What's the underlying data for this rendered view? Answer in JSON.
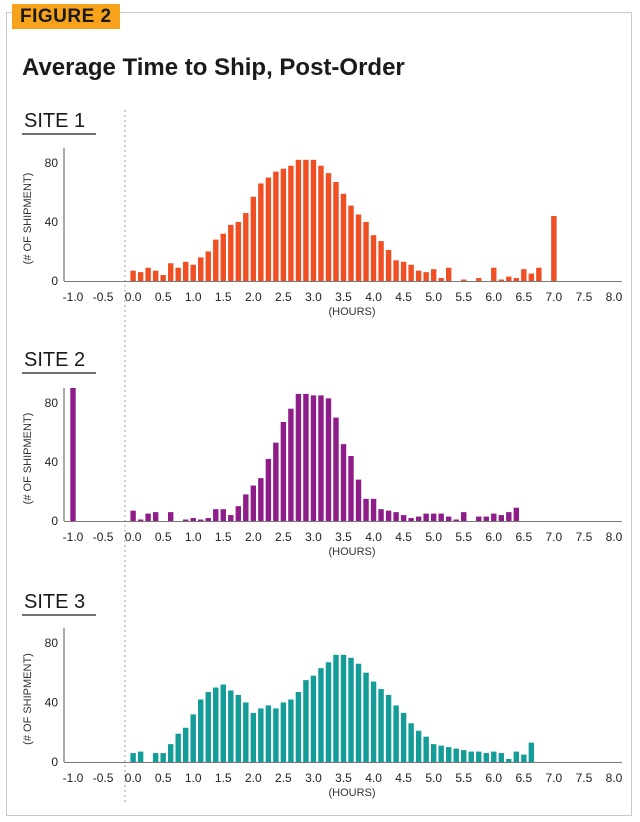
{
  "figure_label": "FIGURE 2",
  "title": "Average Time to Ship, Post-Order",
  "chart_data": [
    {
      "type": "bar",
      "title": "SITE 1",
      "xlabel": "(HOURS)",
      "ylabel": "(# OF SHIPMENT)",
      "color": "#f04e23",
      "xlim": [
        -1.0,
        8.0
      ],
      "ylim": [
        0,
        90
      ],
      "xticks": [
        "-1.0",
        "-0.5",
        "0.0",
        "0.5",
        "1.0",
        "1.5",
        "2.0",
        "2.5",
        "3.0",
        "3.5",
        "4.0",
        "4.5",
        "5.0",
        "5.5",
        "6.0",
        "6.5",
        "7.0",
        "7.5",
        "8.0"
      ],
      "yticks": [
        "0",
        "40",
        "80"
      ],
      "bin_width": 0.125,
      "x": [
        0.0,
        0.125,
        0.25,
        0.375,
        0.5,
        0.625,
        0.75,
        0.875,
        1.0,
        1.125,
        1.25,
        1.375,
        1.5,
        1.625,
        1.75,
        1.875,
        2.0,
        2.125,
        2.25,
        2.375,
        2.5,
        2.625,
        2.75,
        2.875,
        3.0,
        3.125,
        3.25,
        3.375,
        3.5,
        3.625,
        3.75,
        3.875,
        4.0,
        4.125,
        4.25,
        4.375,
        4.5,
        4.625,
        4.75,
        4.875,
        5.0,
        5.125,
        5.25,
        5.375,
        5.5,
        5.625,
        5.75,
        5.875,
        6.0,
        6.125,
        6.25,
        6.375,
        6.5,
        6.625,
        6.75,
        6.875,
        7.0,
        7.125,
        7.25,
        7.375,
        7.5,
        7.625,
        7.75,
        7.875,
        8.0
      ],
      "values": [
        7,
        6,
        9,
        7,
        4,
        12,
        9,
        13,
        11,
        16,
        20,
        28,
        32,
        38,
        40,
        46,
        57,
        66,
        70,
        74,
        76,
        78,
        82,
        82,
        82,
        78,
        73,
        67,
        59,
        51,
        45,
        40,
        31,
        27,
        21,
        14,
        13,
        11,
        7,
        6,
        8,
        2,
        9,
        0,
        1,
        0,
        2,
        0,
        9,
        1,
        3,
        2,
        8,
        5,
        9,
        0,
        44,
        0,
        0,
        0,
        0,
        0,
        0,
        0,
        0
      ]
    },
    {
      "type": "bar",
      "title": "SITE 2",
      "xlabel": "(HOURS)",
      "ylabel": "(# OF SHIPMENT)",
      "color": "#8e1d8a",
      "xlim": [
        -1.0,
        8.0
      ],
      "ylim": [
        0,
        90
      ],
      "xticks": [
        "-1.0",
        "-0.5",
        "0.0",
        "0.5",
        "1.0",
        "1.5",
        "2.0",
        "2.5",
        "3.0",
        "3.5",
        "4.0",
        "4.5",
        "5.0",
        "5.5",
        "6.0",
        "6.5",
        "7.0",
        "7.5",
        "8.0"
      ],
      "yticks": [
        "0",
        "40",
        "80"
      ],
      "bin_width": 0.125,
      "x": [
        -1.0,
        0.0,
        0.125,
        0.25,
        0.375,
        0.5,
        0.625,
        0.75,
        0.875,
        1.0,
        1.125,
        1.25,
        1.375,
        1.5,
        1.625,
        1.75,
        1.875,
        2.0,
        2.125,
        2.25,
        2.375,
        2.5,
        2.625,
        2.75,
        2.875,
        3.0,
        3.125,
        3.25,
        3.375,
        3.5,
        3.625,
        3.75,
        3.875,
        4.0,
        4.125,
        4.25,
        4.375,
        4.5,
        4.625,
        4.75,
        4.875,
        5.0,
        5.125,
        5.25,
        5.375,
        5.5,
        5.625,
        5.75,
        5.875,
        6.0,
        6.125,
        6.25,
        6.375,
        6.5,
        6.625,
        6.75,
        6.875,
        7.0,
        7.125,
        7.25,
        7.375,
        7.5,
        7.625,
        7.75,
        7.875,
        8.0
      ],
      "values": [
        90,
        7,
        1,
        5,
        6,
        0,
        6,
        0,
        1,
        2,
        1,
        2,
        8,
        8,
        4,
        10,
        18,
        24,
        29,
        42,
        53,
        67,
        76,
        86,
        86,
        85,
        85,
        83,
        70,
        52,
        44,
        28,
        15,
        15,
        8,
        7,
        6,
        4,
        2,
        3,
        5,
        5,
        5,
        3,
        1,
        6,
        0,
        3,
        3,
        5,
        4,
        6,
        9,
        0,
        0,
        0,
        0,
        0,
        0,
        0,
        0,
        0,
        0,
        0,
        0,
        0
      ],
      "note_order": "values align index-wise with x"
    },
    {
      "type": "bar",
      "title": "SITE 3",
      "xlabel": "(HOURS)",
      "ylabel": "(# OF SHIPMENT)",
      "color": "#139c98",
      "xlim": [
        -1.0,
        8.0
      ],
      "ylim": [
        0,
        90
      ],
      "xticks": [
        "-1.0",
        "-0.5",
        "0.0",
        "0.5",
        "1.0",
        "1.5",
        "2.0",
        "2.5",
        "3.0",
        "3.5",
        "4.0",
        "4.5",
        "5.0",
        "5.5",
        "6.0",
        "6.5",
        "7.0",
        "7.5",
        "8.0"
      ],
      "yticks": [
        "0",
        "40",
        "80"
      ],
      "bin_width": 0.125,
      "x": [
        0.0,
        0.125,
        0.25,
        0.375,
        0.5,
        0.625,
        0.75,
        0.875,
        1.0,
        1.125,
        1.25,
        1.375,
        1.5,
        1.625,
        1.75,
        1.875,
        2.0,
        2.125,
        2.25,
        2.375,
        2.5,
        2.625,
        2.75,
        2.875,
        3.0,
        3.125,
        3.25,
        3.375,
        3.5,
        3.625,
        3.75,
        3.875,
        4.0,
        4.125,
        4.25,
        4.375,
        4.5,
        4.625,
        4.75,
        4.875,
        5.0,
        5.125,
        5.25,
        5.375,
        5.5,
        5.625,
        5.75,
        5.875,
        6.0,
        6.125,
        6.25,
        6.375,
        6.5,
        6.625,
        6.75,
        6.875,
        7.0,
        7.125,
        7.25,
        7.375,
        7.5,
        7.625,
        7.75,
        7.875,
        8.0
      ],
      "values": [
        6,
        7,
        0,
        6,
        6,
        12,
        19,
        23,
        32,
        42,
        47,
        50,
        52,
        48,
        45,
        40,
        33,
        36,
        38,
        36,
        40,
        42,
        47,
        55,
        58,
        63,
        67,
        72,
        72,
        70,
        66,
        60,
        54,
        49,
        45,
        38,
        33,
        26,
        21,
        17,
        12,
        11,
        10,
        9,
        8,
        7,
        7,
        6,
        7,
        6,
        2,
        7,
        5,
        13,
        0,
        0,
        0,
        0,
        0,
        0,
        0,
        0,
        0,
        0,
        0
      ]
    }
  ]
}
